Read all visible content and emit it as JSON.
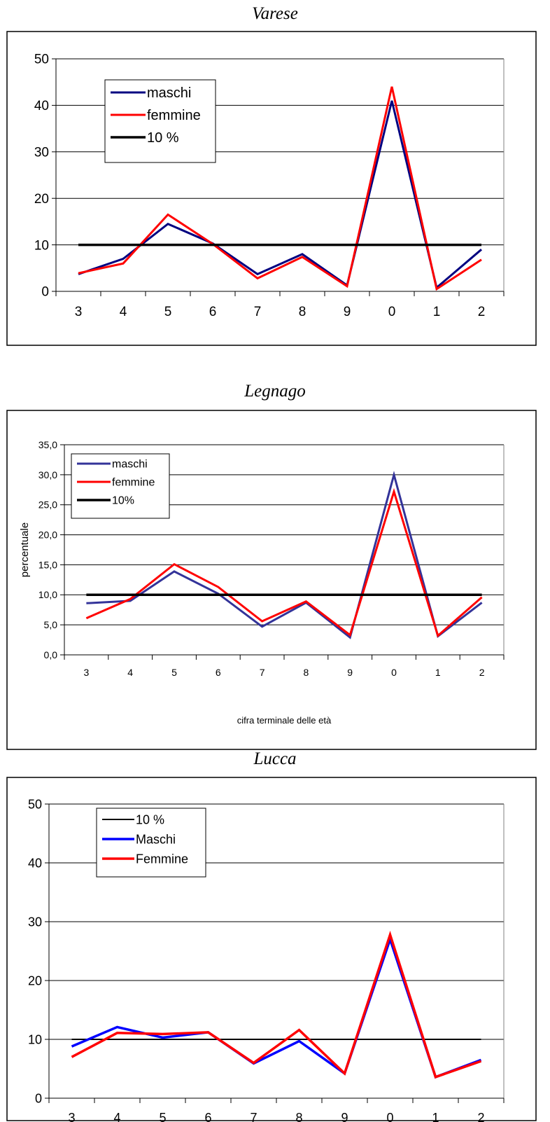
{
  "chart_data": [
    {
      "type": "line",
      "title": "Varese",
      "categories": [
        "3",
        "4",
        "5",
        "6",
        "7",
        "8",
        "9",
        "0",
        "1",
        "2"
      ],
      "ylim": [
        0,
        50
      ],
      "yticks": [
        "0",
        "10",
        "20",
        "30",
        "40",
        "50"
      ],
      "xlabel": "",
      "ylabel": "",
      "grid": true,
      "legend_position": "top-left",
      "series": [
        {
          "name": "maschi",
          "color": "#000080",
          "values": [
            3.7,
            7.0,
            14.5,
            10.3,
            3.7,
            8.0,
            1.3,
            41.0,
            0.8,
            9.0
          ]
        },
        {
          "name": "femmine",
          "color": "#ff0000",
          "values": [
            3.9,
            6.0,
            16.5,
            10.2,
            2.8,
            7.4,
            1.1,
            44.0,
            0.5,
            6.8
          ]
        },
        {
          "name": "10 %",
          "color": "#000000",
          "values": [
            10,
            10,
            10,
            10,
            10,
            10,
            10,
            10,
            10,
            10
          ]
        }
      ]
    },
    {
      "type": "line",
      "title": "Legnago",
      "categories": [
        "3",
        "4",
        "5",
        "6",
        "7",
        "8",
        "9",
        "0",
        "1",
        "2"
      ],
      "ylim": [
        0,
        35
      ],
      "yticks": [
        "0,0",
        "5,0",
        "10,0",
        "15,0",
        "20,0",
        "25,0",
        "30,0",
        "35,0"
      ],
      "xlabel": "cifra terminale delle età",
      "ylabel": "percentuale",
      "grid": true,
      "legend_position": "top-left",
      "series": [
        {
          "name": "maschi",
          "color": "#333399",
          "values": [
            8.6,
            9.0,
            13.9,
            10.2,
            4.7,
            8.7,
            2.9,
            30.0,
            3.1,
            8.7
          ]
        },
        {
          "name": "femmine",
          "color": "#ff0000",
          "values": [
            6.1,
            9.3,
            15.1,
            11.3,
            5.6,
            8.9,
            3.3,
            27.2,
            3.2,
            9.6
          ]
        },
        {
          "name": "10%",
          "color": "#000000",
          "values": [
            10,
            10,
            10,
            10,
            10,
            10,
            10,
            10,
            10,
            10
          ]
        }
      ]
    },
    {
      "type": "line",
      "title": "Lucca",
      "categories": [
        "3",
        "4",
        "5",
        "6",
        "7",
        "8",
        "9",
        "0",
        "1",
        "2"
      ],
      "ylim": [
        0,
        50
      ],
      "yticks": [
        "0",
        "10",
        "20",
        "30",
        "40",
        "50"
      ],
      "xlabel": "",
      "ylabel": "",
      "grid": true,
      "legend_position": "top-left",
      "series": [
        {
          "name": "10 %",
          "color": "#000000",
          "values": [
            10,
            10,
            10,
            10,
            10,
            10,
            10,
            10,
            10,
            10
          ]
        },
        {
          "name": "Maschi",
          "color": "#0000ff",
          "values": [
            8.8,
            12.1,
            10.3,
            11.2,
            5.9,
            9.7,
            4.2,
            27.0,
            3.6,
            6.5
          ]
        },
        {
          "name": "Femmine",
          "color": "#ff0000",
          "values": [
            7.0,
            11.1,
            10.9,
            11.2,
            6.0,
            11.6,
            4.2,
            27.8,
            3.6,
            6.3
          ]
        }
      ]
    }
  ]
}
